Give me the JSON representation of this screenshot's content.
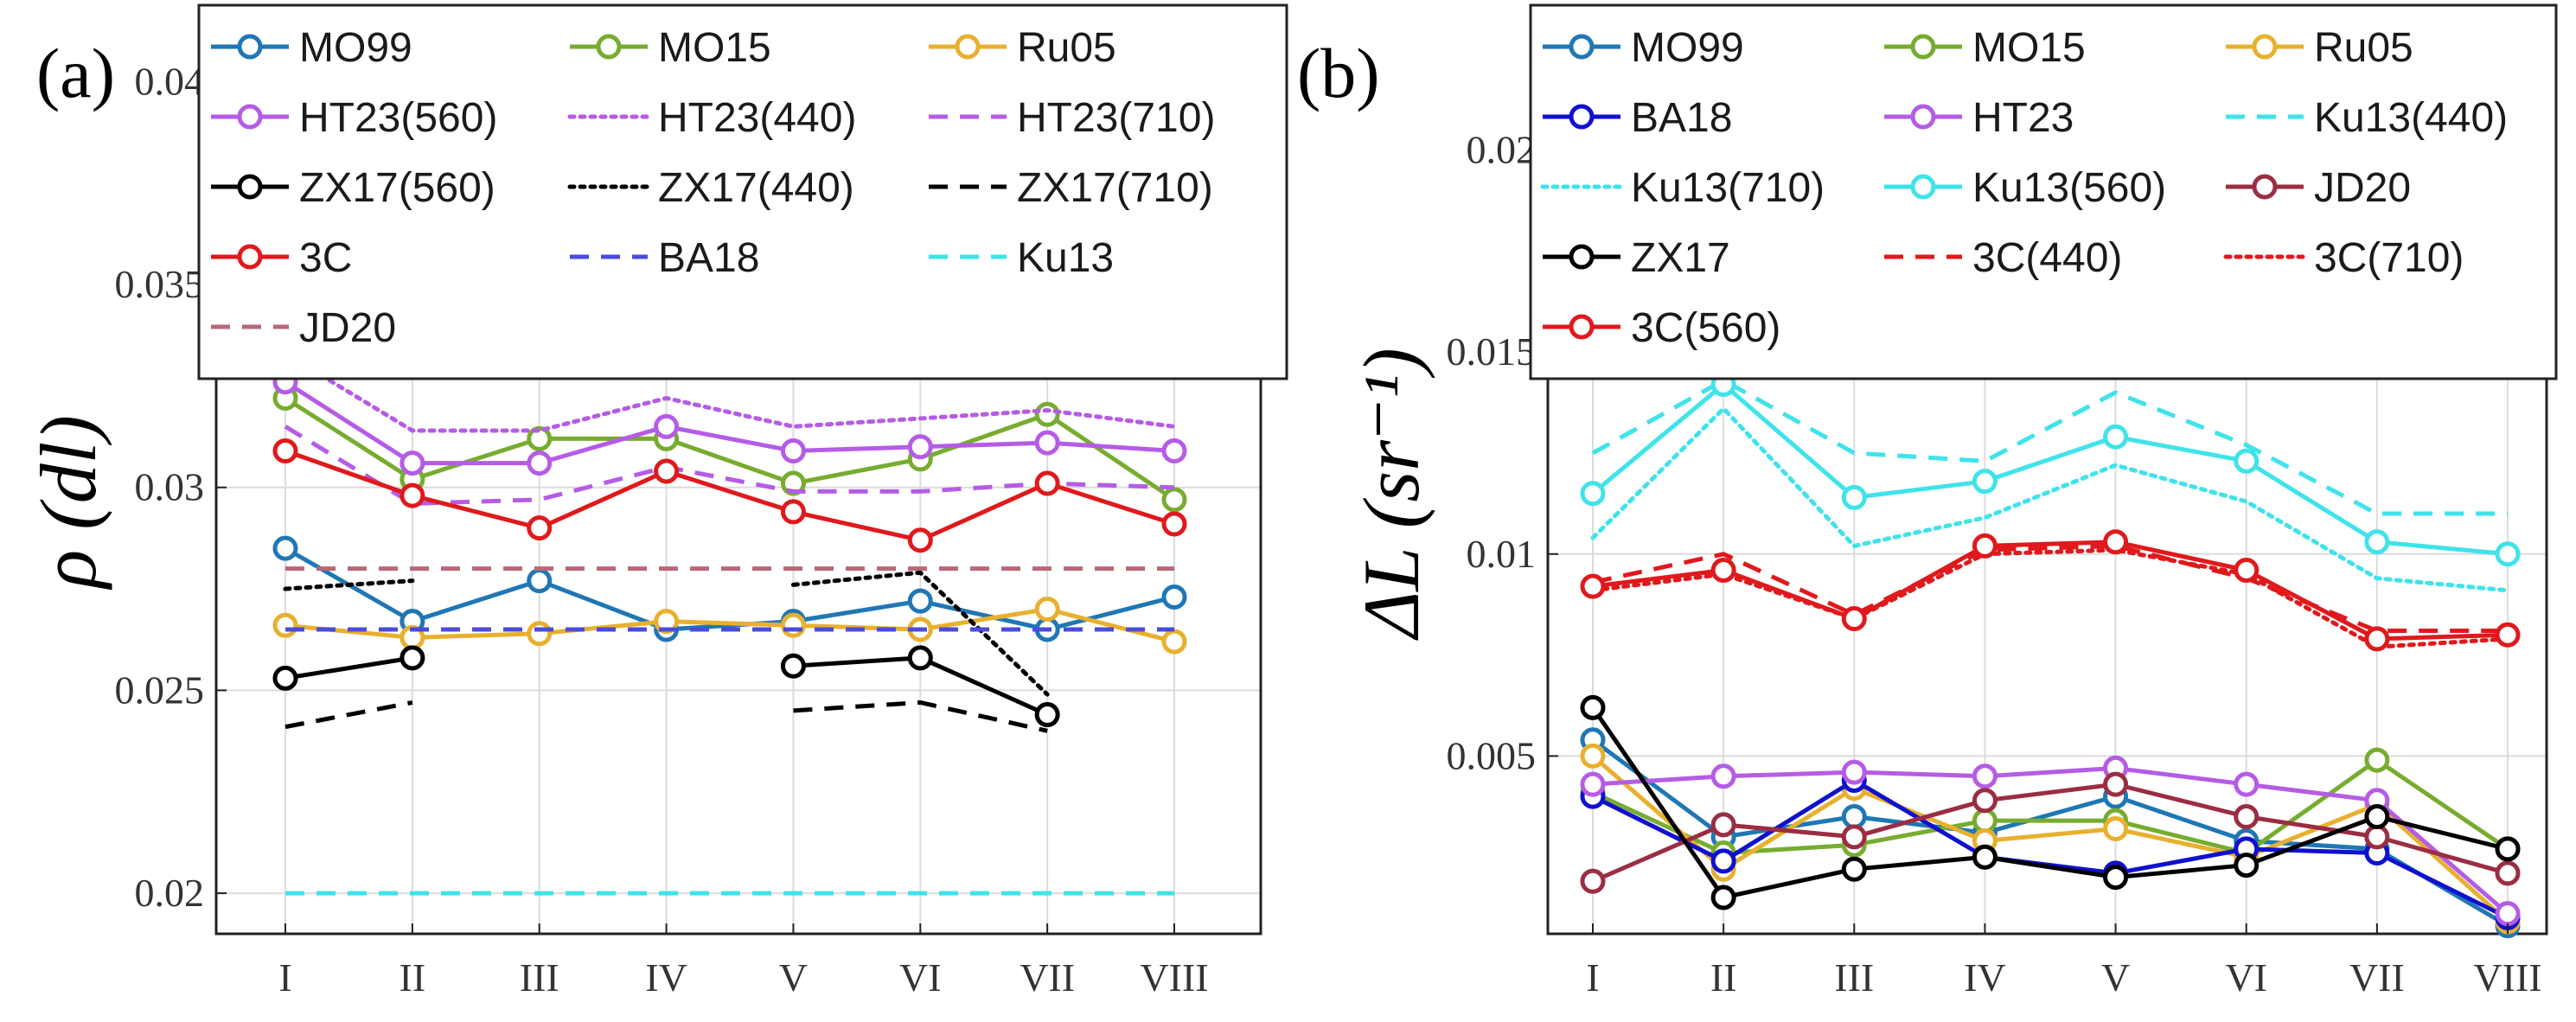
{
  "chart_data": [
    {
      "type": "line",
      "panel_label": "(a)",
      "ylabel": "ρ (dl)",
      "xlabel": "",
      "categories": [
        "I",
        "II",
        "III",
        "IV",
        "V",
        "VI",
        "VII",
        "VIII"
      ],
      "ylim": [
        0.019,
        0.0415
      ],
      "yticks": [
        0.02,
        0.025,
        0.03,
        0.035,
        0.04
      ],
      "ytick_labels": [
        "0.02",
        "0.025",
        "0.03",
        "0.035",
        "0.04"
      ],
      "grid": true,
      "legend_columns": 3,
      "series": [
        {
          "name": "MO99",
          "color": "#1f77b4",
          "style": "solid",
          "marker": "circle",
          "values": [
            0.0285,
            0.0267,
            0.0277,
            0.0265,
            0.0267,
            0.0272,
            0.0265,
            0.0273
          ]
        },
        {
          "name": "MO15",
          "color": "#77ac30",
          "style": "solid",
          "marker": "circle",
          "values": [
            0.0322,
            0.0302,
            0.0312,
            0.0312,
            0.0301,
            0.0307,
            0.0318,
            0.0297
          ]
        },
        {
          "name": "Ru05",
          "color": "#e8b02e",
          "style": "solid",
          "marker": "circle",
          "values": [
            0.0266,
            0.0263,
            0.0264,
            0.0267,
            0.0266,
            0.0265,
            0.027,
            0.0262
          ]
        },
        {
          "name": "HT23(560)",
          "color": "#b55ce6",
          "style": "solid",
          "marker": "circle",
          "values": [
            0.0326,
            0.0306,
            0.0306,
            0.0315,
            0.0309,
            0.031,
            0.0311,
            0.0309
          ]
        },
        {
          "name": "HT23(440)",
          "color": "#b55ce6",
          "style": "dotted",
          "marker": "none",
          "values": [
            0.0333,
            0.0314,
            0.0314,
            0.0322,
            0.0315,
            0.0317,
            0.0319,
            0.0315
          ]
        },
        {
          "name": "HT23(710)",
          "color": "#b55ce6",
          "style": "dashed",
          "marker": "none",
          "values": [
            0.0315,
            0.0296,
            0.0297,
            0.0305,
            0.0299,
            0.0299,
            0.0301,
            0.03
          ]
        },
        {
          "name": "ZX17(560)",
          "color": "#000000",
          "style": "solid",
          "marker": "circle",
          "values": [
            0.0253,
            0.0258,
            null,
            null,
            0.0256,
            0.0258,
            0.0244,
            null
          ]
        },
        {
          "name": "ZX17(440)",
          "color": "#000000",
          "style": "dotted",
          "marker": "none",
          "values": [
            0.0275,
            0.0277,
            null,
            null,
            0.0276,
            0.0279,
            0.0249,
            null
          ]
        },
        {
          "name": "ZX17(710)",
          "color": "#000000",
          "style": "dashed",
          "marker": "none",
          "values": [
            0.0241,
            0.0247,
            null,
            null,
            0.0245,
            0.0247,
            0.024,
            null
          ]
        },
        {
          "name": "3C",
          "color": "#e0191c",
          "style": "solid",
          "marker": "circle",
          "values": [
            0.0309,
            0.0298,
            0.029,
            0.0304,
            0.0294,
            0.0287,
            0.0301,
            0.0291
          ]
        },
        {
          "name": "BA18",
          "color": "#4b4bdd",
          "style": "dashed",
          "marker": "none",
          "values": [
            0.0265,
            0.0265,
            0.0265,
            0.0265,
            0.0265,
            0.0265,
            0.0265,
            0.0265
          ]
        },
        {
          "name": "Ku13",
          "color": "#3fe3ea",
          "style": "dashed",
          "marker": "none",
          "values": [
            0.02,
            0.02,
            0.02,
            0.02,
            0.02,
            0.02,
            0.02,
            0.02
          ]
        },
        {
          "name": "JD20",
          "color": "#b86878",
          "style": "dashed",
          "marker": "none",
          "values": [
            0.028,
            0.028,
            0.028,
            0.028,
            0.028,
            0.028,
            0.028,
            0.028
          ]
        }
      ]
    },
    {
      "type": "line",
      "panel_label": "(b)",
      "ylabel": "ΔL (sr⁻¹)",
      "xlabel": "",
      "categories": [
        "I",
        "II",
        "III",
        "IV",
        "V",
        "VI",
        "VII",
        "VIII"
      ],
      "ylim": [
        0.0006,
        0.0232
      ],
      "yticks": [
        0.005,
        0.01,
        0.015,
        0.02
      ],
      "ytick_labels": [
        "0.005",
        "0.01",
        "0.015",
        "0.02"
      ],
      "grid": true,
      "legend_columns": 3,
      "series": [
        {
          "name": "MO99",
          "color": "#1f77b4",
          "style": "solid",
          "marker": "circle",
          "values": [
            0.0054,
            0.003,
            0.0035,
            0.0031,
            0.004,
            0.0029,
            0.0027,
            0.0008
          ]
        },
        {
          "name": "MO15",
          "color": "#77ac30",
          "style": "solid",
          "marker": "circle",
          "values": [
            0.0041,
            0.0026,
            0.0028,
            0.0034,
            0.0034,
            0.0026,
            0.0049,
            0.0027
          ]
        },
        {
          "name": "Ru05",
          "color": "#e8b02e",
          "style": "solid",
          "marker": "circle",
          "values": [
            0.005,
            0.0022,
            0.0042,
            0.0029,
            0.0032,
            0.0025,
            0.0038,
            0.0009
          ]
        },
        {
          "name": "BA18",
          "color": "#1010d0",
          "style": "solid",
          "marker": "circle",
          "values": [
            0.004,
            0.0024,
            0.0044,
            0.0025,
            0.0021,
            0.0027,
            0.0026,
            0.001
          ]
        },
        {
          "name": "HT23",
          "color": "#b55ce6",
          "style": "solid",
          "marker": "circle",
          "values": [
            0.0043,
            0.0045,
            0.0046,
            0.0045,
            0.0047,
            0.0043,
            0.0039,
            0.0011
          ]
        },
        {
          "name": "Ku13(440)",
          "color": "#3fe3ea",
          "style": "dashed",
          "marker": "none",
          "values": [
            0.0125,
            0.0143,
            0.0125,
            0.0123,
            0.014,
            0.0127,
            0.011,
            0.011
          ]
        },
        {
          "name": "Ku13(710)",
          "color": "#3fe3ea",
          "style": "dotted",
          "marker": "none",
          "values": [
            0.0104,
            0.0136,
            0.0102,
            0.0109,
            0.0122,
            0.0113,
            0.0094,
            0.0091
          ]
        },
        {
          "name": "Ku13(560)",
          "color": "#3fe3ea",
          "style": "solid",
          "marker": "circle",
          "values": [
            0.0115,
            0.0142,
            0.0114,
            0.0118,
            0.0129,
            0.0123,
            0.0103,
            0.01
          ]
        },
        {
          "name": "JD20",
          "color": "#9b2d43",
          "style": "solid",
          "marker": "circle",
          "values": [
            0.0019,
            0.0033,
            0.003,
            0.0039,
            0.0043,
            0.0035,
            0.003,
            0.0021
          ]
        },
        {
          "name": "ZX17",
          "color": "#000000",
          "style": "solid",
          "marker": "circle",
          "values": [
            0.0062,
            0.0015,
            0.0022,
            0.0025,
            0.002,
            0.0023,
            0.0035,
            0.0027
          ]
        },
        {
          "name": "3C(440)",
          "color": "#e0191c",
          "style": "dashed",
          "marker": "none",
          "values": [
            0.0093,
            0.01,
            0.0085,
            0.0101,
            0.0102,
            0.0094,
            0.0081,
            0.0081
          ]
        },
        {
          "name": "3C(710)",
          "color": "#e0191c",
          "style": "dotted",
          "marker": "none",
          "values": [
            0.0091,
            0.0095,
            0.0084,
            0.01,
            0.0101,
            0.0095,
            0.0077,
            0.0079
          ]
        },
        {
          "name": "3C(560)",
          "color": "#e0191c",
          "style": "solid",
          "marker": "circle",
          "values": [
            0.0092,
            0.0096,
            0.0084,
            0.0102,
            0.0103,
            0.0096,
            0.0079,
            0.008
          ]
        }
      ]
    }
  ]
}
